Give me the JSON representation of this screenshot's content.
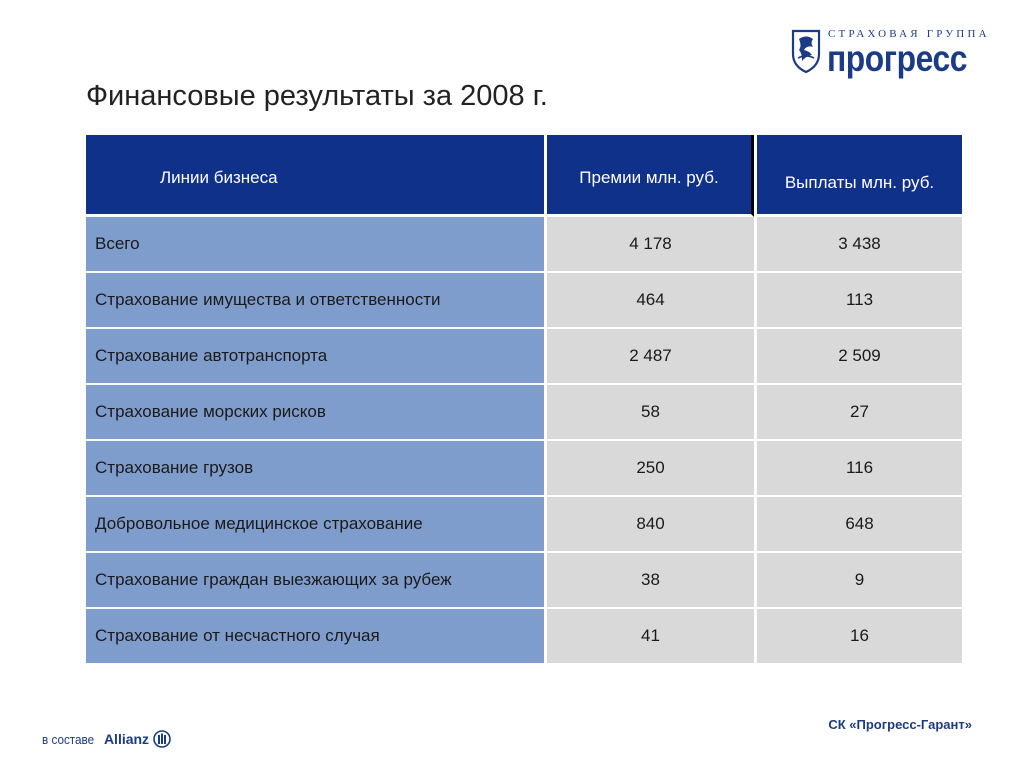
{
  "logo": {
    "tagline": "СТРАХОВАЯ ГРУППА",
    "name": "прогресс",
    "emblem_icon": "lion-shield-icon",
    "color": "#1c3b86"
  },
  "title": "Финансовые результаты за 2008 г.",
  "table": {
    "headers": [
      "Линии бизнеса",
      "Премии млн. руб.",
      "Выплаты млн. руб."
    ],
    "rows": [
      [
        "Всего",
        "4 178",
        "3 438"
      ],
      [
        "Страхование имущества и ответственности",
        "464",
        "113"
      ],
      [
        "Страхование автотранспорта",
        "2 487",
        "2 509"
      ],
      [
        "Страхование морских рисков",
        "58",
        "27"
      ],
      [
        "Страхование грузов",
        "250",
        "116"
      ],
      [
        "Добровольное медицинское страхование",
        "840",
        "648"
      ],
      [
        "Страхование граждан выезжающих за рубеж",
        "38",
        "9"
      ],
      [
        "Страхование от несчастного случая",
        "41",
        "16"
      ]
    ],
    "colors": {
      "header_bg": "#10318a",
      "name_cell_bg": "#7f9dcc",
      "value_cell_bg": "#d9d9d9"
    }
  },
  "footer": {
    "left_prefix": "в составе",
    "left_brand": "Allianz",
    "allianz_icon": "allianz-eagle-icon",
    "right": "СК «Прогресс-Гарант»"
  }
}
